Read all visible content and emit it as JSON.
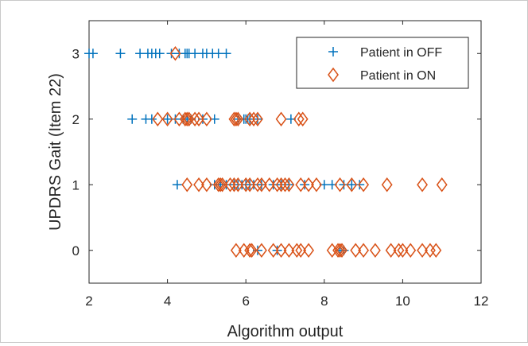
{
  "chart_data": {
    "type": "scatter",
    "xlabel": "Algorithm output",
    "ylabel": "UPDRS Gait (Item 22)",
    "xlim": [
      2,
      12
    ],
    "ylim": [
      -0.5,
      3.5
    ],
    "xticks": [
      2,
      4,
      6,
      8,
      10,
      12
    ],
    "yticks": [
      0,
      1,
      2,
      3
    ],
    "grid": false,
    "legend_position": "top-right",
    "series": [
      {
        "name": "Patient in OFF",
        "marker": "plus",
        "color": "#0072BD",
        "points": [
          [
            2.0,
            3
          ],
          [
            2.1,
            3
          ],
          [
            2.8,
            3
          ],
          [
            3.3,
            3
          ],
          [
            3.5,
            3
          ],
          [
            3.6,
            3
          ],
          [
            3.7,
            3
          ],
          [
            3.8,
            3
          ],
          [
            4.1,
            3
          ],
          [
            4.3,
            3
          ],
          [
            4.45,
            3
          ],
          [
            4.5,
            3
          ],
          [
            4.55,
            3
          ],
          [
            4.7,
            3
          ],
          [
            4.9,
            3
          ],
          [
            5.0,
            3
          ],
          [
            5.15,
            3
          ],
          [
            5.3,
            3
          ],
          [
            5.5,
            3
          ],
          [
            3.1,
            2
          ],
          [
            3.45,
            2
          ],
          [
            3.6,
            2
          ],
          [
            4.0,
            2
          ],
          [
            4.2,
            2
          ],
          [
            4.4,
            2
          ],
          [
            4.5,
            2
          ],
          [
            4.6,
            2
          ],
          [
            4.9,
            2
          ],
          [
            5.2,
            2
          ],
          [
            5.8,
            2
          ],
          [
            5.95,
            2
          ],
          [
            6.0,
            2
          ],
          [
            6.05,
            2
          ],
          [
            6.1,
            2
          ],
          [
            6.3,
            2
          ],
          [
            7.15,
            2
          ],
          [
            4.25,
            1
          ],
          [
            5.2,
            1
          ],
          [
            5.35,
            1
          ],
          [
            5.5,
            1
          ],
          [
            5.7,
            1
          ],
          [
            5.8,
            1
          ],
          [
            5.9,
            1
          ],
          [
            6.0,
            1
          ],
          [
            6.1,
            1
          ],
          [
            6.2,
            1
          ],
          [
            6.4,
            1
          ],
          [
            6.7,
            1
          ],
          [
            6.9,
            1
          ],
          [
            7.1,
            1
          ],
          [
            7.5,
            1
          ],
          [
            8.0,
            1
          ],
          [
            8.2,
            1
          ],
          [
            8.5,
            1
          ],
          [
            8.7,
            1
          ],
          [
            8.9,
            1
          ],
          [
            6.3,
            0
          ],
          [
            6.8,
            0
          ],
          [
            8.4,
            0
          ],
          [
            8.5,
            0
          ]
        ]
      },
      {
        "name": "Patient in ON",
        "marker": "diamond",
        "color": "#D95319",
        "points": [
          [
            4.2,
            3
          ],
          [
            3.75,
            2
          ],
          [
            4.0,
            2
          ],
          [
            4.3,
            2
          ],
          [
            4.45,
            2
          ],
          [
            4.5,
            2
          ],
          [
            4.55,
            2
          ],
          [
            4.7,
            2
          ],
          [
            4.8,
            2
          ],
          [
            5.0,
            2
          ],
          [
            5.7,
            2
          ],
          [
            5.75,
            2
          ],
          [
            5.8,
            2
          ],
          [
            6.1,
            2
          ],
          [
            6.2,
            2
          ],
          [
            6.3,
            2
          ],
          [
            6.9,
            2
          ],
          [
            7.35,
            2
          ],
          [
            7.45,
            2
          ],
          [
            4.5,
            1
          ],
          [
            4.8,
            1
          ],
          [
            5.0,
            1
          ],
          [
            5.3,
            1
          ],
          [
            5.35,
            1
          ],
          [
            5.4,
            1
          ],
          [
            5.6,
            1
          ],
          [
            5.7,
            1
          ],
          [
            5.8,
            1
          ],
          [
            6.0,
            1
          ],
          [
            6.1,
            1
          ],
          [
            6.3,
            1
          ],
          [
            6.4,
            1
          ],
          [
            6.6,
            1
          ],
          [
            6.8,
            1
          ],
          [
            6.9,
            1
          ],
          [
            7.0,
            1
          ],
          [
            7.1,
            1
          ],
          [
            7.4,
            1
          ],
          [
            7.6,
            1
          ],
          [
            7.8,
            1
          ],
          [
            8.4,
            1
          ],
          [
            8.7,
            1
          ],
          [
            9.0,
            1
          ],
          [
            9.6,
            1
          ],
          [
            10.5,
            1
          ],
          [
            11.0,
            1
          ],
          [
            5.75,
            0
          ],
          [
            5.95,
            0
          ],
          [
            6.1,
            0
          ],
          [
            6.15,
            0
          ],
          [
            6.4,
            0
          ],
          [
            6.7,
            0
          ],
          [
            6.9,
            0
          ],
          [
            7.1,
            0
          ],
          [
            7.3,
            0
          ],
          [
            7.4,
            0
          ],
          [
            7.6,
            0
          ],
          [
            8.2,
            0
          ],
          [
            8.35,
            0
          ],
          [
            8.4,
            0
          ],
          [
            8.45,
            0
          ],
          [
            8.8,
            0
          ],
          [
            9.0,
            0
          ],
          [
            9.3,
            0
          ],
          [
            9.7,
            0
          ],
          [
            9.9,
            0
          ],
          [
            10.0,
            0
          ],
          [
            10.2,
            0
          ],
          [
            10.5,
            0
          ],
          [
            10.7,
            0
          ],
          [
            10.85,
            0
          ]
        ]
      }
    ]
  }
}
